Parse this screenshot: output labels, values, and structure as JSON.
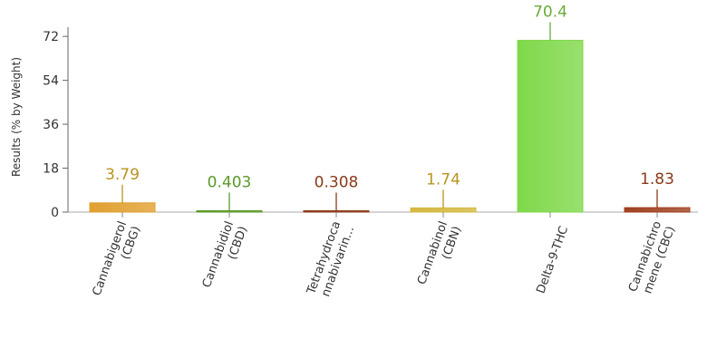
{
  "chart_data": {
    "type": "bar",
    "ylabel": "Results (% by Weight)",
    "ylim": [
      0,
      78
    ],
    "yticks": [
      0,
      18,
      36,
      54,
      72
    ],
    "categories": [
      [
        "Cannabigerol",
        "(CBG)"
      ],
      [
        "Cannabidiol",
        "(CBD)"
      ],
      [
        "Tetrahydroca",
        "nnabivarin..."
      ],
      [
        "Cannabinol",
        "(CBN)"
      ],
      [
        "Delta-9-THC"
      ],
      [
        "Cannabichro",
        "mene (CBC)"
      ]
    ],
    "values": [
      3.79,
      0.403,
      0.308,
      1.74,
      70.4,
      1.83
    ],
    "value_labels": [
      "3.79",
      "0.403",
      "0.308",
      "1.74",
      "70.4",
      "1.83"
    ],
    "colors": [
      "#e0a030",
      "#5a9a2a",
      "#8b3a1a",
      "#d4b840",
      "#7fd84a",
      "#a04020"
    ],
    "label_colors": [
      "#b8941e",
      "#5a9a2a",
      "#8b3a1a",
      "#b8941e",
      "#6aab3a",
      "#8b3a1a"
    ],
    "grid": false,
    "legend": "none"
  }
}
